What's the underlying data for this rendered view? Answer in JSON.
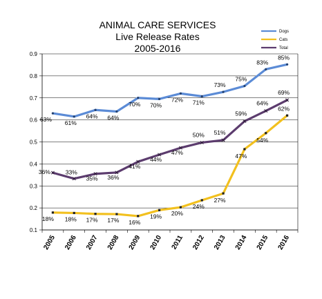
{
  "chart_data": {
    "type": "line",
    "title": [
      "ANIMAL CARE SERVICES",
      "Live Release Rates",
      "2005-2016"
    ],
    "xlabel": "",
    "ylabel": "",
    "categories": [
      "2005",
      "2006",
      "2007",
      "2008",
      "2009",
      "2010",
      "2011",
      "2012",
      "2013",
      "2014",
      "2015",
      "2016"
    ],
    "ylim": [
      0.1,
      0.9
    ],
    "yticks": [
      "0.1",
      "0.2",
      "0.3",
      "0.4",
      "0.5",
      "0.6",
      "0.7",
      "0.8",
      "0.9"
    ],
    "grid": true,
    "legend_position": "top-right",
    "series": [
      {
        "name": "Dogs",
        "color": "#5b8bd6",
        "values": [
          0.63,
          0.615,
          0.645,
          0.638,
          0.7,
          0.695,
          0.72,
          0.707,
          0.727,
          0.754,
          0.83,
          0.852
        ],
        "labels": [
          "63%",
          "61%",
          "64%",
          "64%",
          "70%",
          "70%",
          "72%",
          "71%",
          "73%",
          "75%",
          "83%",
          "85%"
        ]
      },
      {
        "name": "Cats",
        "color": "#f2c01e",
        "values": [
          0.179,
          0.177,
          0.173,
          0.172,
          0.163,
          0.19,
          0.203,
          0.235,
          0.266,
          0.467,
          0.54,
          0.62
        ],
        "labels": [
          "18%",
          "18%",
          "17%",
          "17%",
          "16%",
          "19%",
          "20%",
          "24%",
          "27%",
          "47%",
          "54%",
          "62%"
        ]
      },
      {
        "name": "Total",
        "color": "#5c3c6e",
        "values": [
          0.36,
          0.333,
          0.355,
          0.361,
          0.41,
          0.442,
          0.473,
          0.497,
          0.508,
          0.594,
          0.641,
          0.69
        ],
        "labels": [
          "36%",
          "33%",
          "35%",
          "36%",
          "41%",
          "44%",
          "47%",
          "50%",
          "51%",
          "59%",
          "64%",
          "69%"
        ]
      }
    ]
  }
}
